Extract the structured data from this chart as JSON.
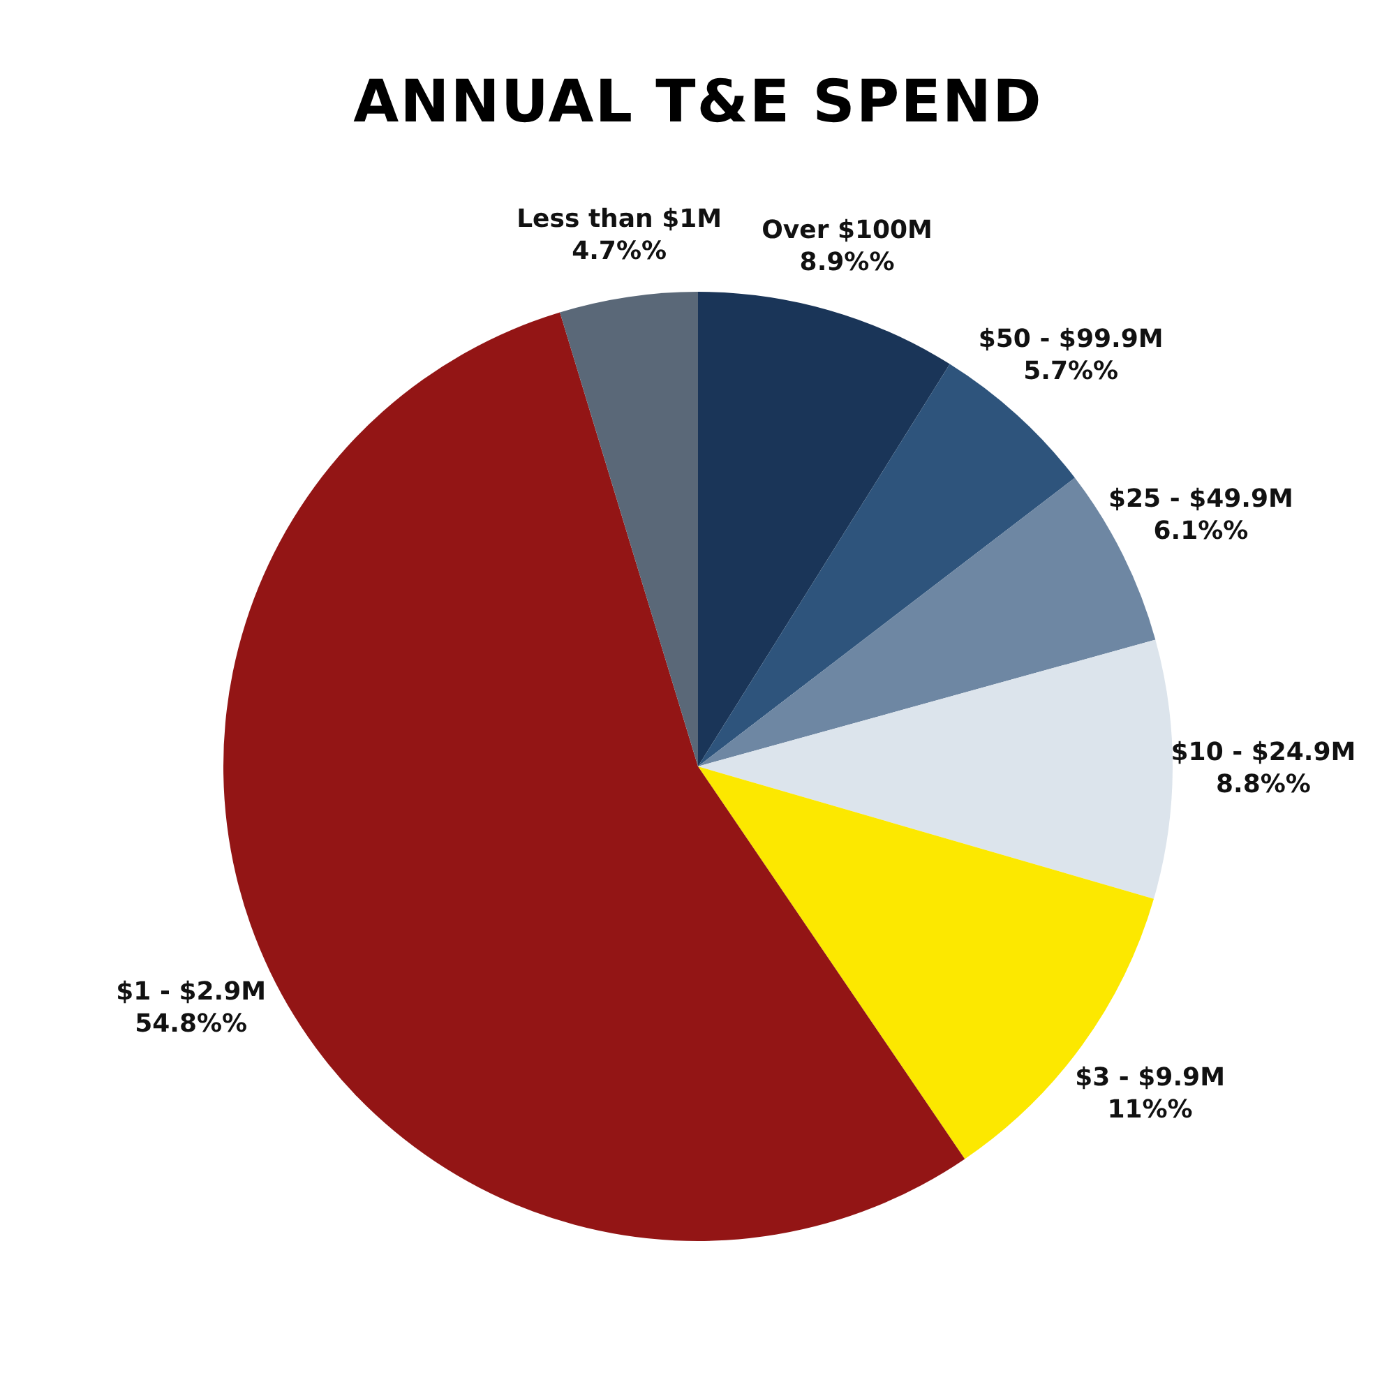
{
  "chart_data": {
    "type": "pie",
    "title": "ANNUAL T&E SPEND",
    "categories": [
      "Over $100M",
      "$50 - $99.9M",
      "$25 - $49.9M",
      "$10 - $24.9M",
      "$3 - $9.9M",
      "$1 - $2.9M",
      "Less than $1M"
    ],
    "values": [
      8.9,
      5.7,
      6.1,
      8.8,
      11,
      54.8,
      4.7
    ],
    "value_labels": [
      "8.9%%",
      "5.7%%",
      "6.1%%",
      "8.8%%",
      "11%%",
      "54.8%%",
      "4.7%%"
    ],
    "colors": [
      "#1a3558",
      "#2e547c",
      "#6e87a3",
      "#dce4ec",
      "#fce800",
      "#931515",
      "#5a6878"
    ],
    "legend": false
  }
}
